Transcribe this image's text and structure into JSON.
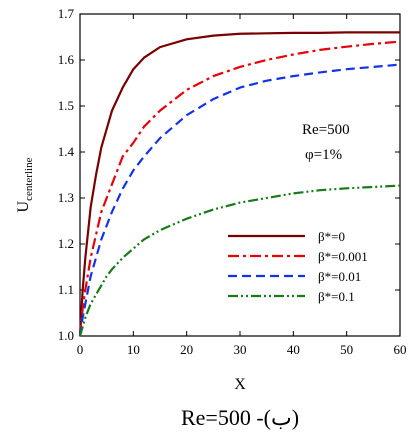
{
  "chart_data": {
    "type": "line",
    "xlabel": "X",
    "ylabel": "U",
    "ylabel_subscript": "centerline",
    "xlim": [
      0,
      60
    ],
    "ylim": [
      1.0,
      1.7
    ],
    "x_ticks": [
      0,
      10,
      20,
      30,
      40,
      50,
      60
    ],
    "y_ticks": [
      1.0,
      1.1,
      1.2,
      1.3,
      1.4,
      1.5,
      1.6,
      1.7
    ],
    "x_tick_labels": [
      "0",
      "10",
      "20",
      "30",
      "40",
      "50",
      "60"
    ],
    "y_tick_labels": [
      "1.0",
      "1.1",
      "1.2",
      "1.3",
      "1.4",
      "1.5",
      "1.6",
      "1.7"
    ],
    "grid": false,
    "legend_position": "bottom-right",
    "annotations": [
      "Re=500",
      "φ=1%"
    ],
    "caption": "Re=500 -(ب)",
    "x": [
      0,
      0.5,
      1,
      2,
      3,
      4,
      5,
      6,
      8,
      10,
      12,
      15,
      20,
      25,
      30,
      35,
      40,
      45,
      50,
      55,
      60
    ],
    "series": [
      {
        "name": "β*=0",
        "color": "#7a0000",
        "dash": "solid",
        "values": [
          1.0,
          1.1,
          1.17,
          1.28,
          1.35,
          1.41,
          1.45,
          1.49,
          1.54,
          1.58,
          1.605,
          1.628,
          1.645,
          1.653,
          1.657,
          1.658,
          1.659,
          1.659,
          1.66,
          1.66,
          1.66
        ]
      },
      {
        "name": "β*=0.001",
        "color": "#e8000b",
        "dash": "dashdot",
        "values": [
          1.0,
          1.06,
          1.1,
          1.17,
          1.22,
          1.27,
          1.3,
          1.33,
          1.39,
          1.42,
          1.455,
          1.49,
          1.535,
          1.565,
          1.585,
          1.6,
          1.612,
          1.622,
          1.629,
          1.635,
          1.64
        ]
      },
      {
        "name": "β*=0.01",
        "color": "#1432e6",
        "dash": "dashed",
        "values": [
          1.0,
          1.04,
          1.07,
          1.13,
          1.17,
          1.21,
          1.24,
          1.27,
          1.32,
          1.36,
          1.39,
          1.43,
          1.48,
          1.515,
          1.54,
          1.555,
          1.565,
          1.573,
          1.58,
          1.585,
          1.59
        ]
      },
      {
        "name": "β*=0.1",
        "color": "#1a7a1a",
        "dash": "dashdotdot",
        "values": [
          1.0,
          1.02,
          1.04,
          1.07,
          1.09,
          1.11,
          1.13,
          1.145,
          1.17,
          1.19,
          1.21,
          1.23,
          1.255,
          1.275,
          1.29,
          1.3,
          1.31,
          1.317,
          1.321,
          1.324,
          1.327
        ]
      }
    ]
  }
}
